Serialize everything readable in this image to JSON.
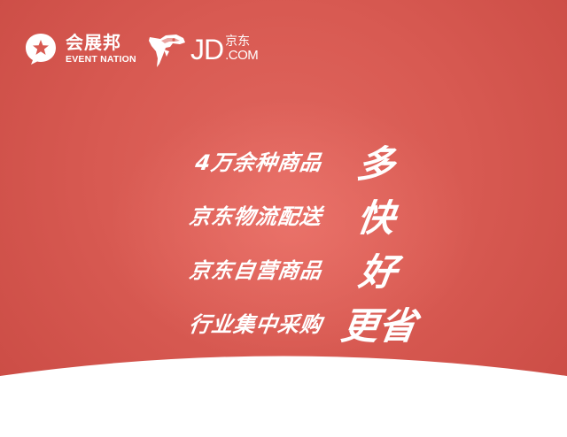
{
  "brand": {
    "event_nation_cn": "会展邦",
    "event_nation_en": "EVENT NATION",
    "jd_letters": "JD",
    "jd_cn": "京东",
    "jd_com": ".COM"
  },
  "slogans": [
    {
      "label": "4万余种商品",
      "keyword": "多"
    },
    {
      "label": "京东物流配送",
      "keyword": "快"
    },
    {
      "label": "京东自营商品",
      "keyword": "好"
    },
    {
      "label": "行业集中采购",
      "keyword": "更省"
    }
  ],
  "colors": {
    "background": "#d85a52",
    "text": "#ffffff",
    "bottom_band": "#ffffff"
  }
}
